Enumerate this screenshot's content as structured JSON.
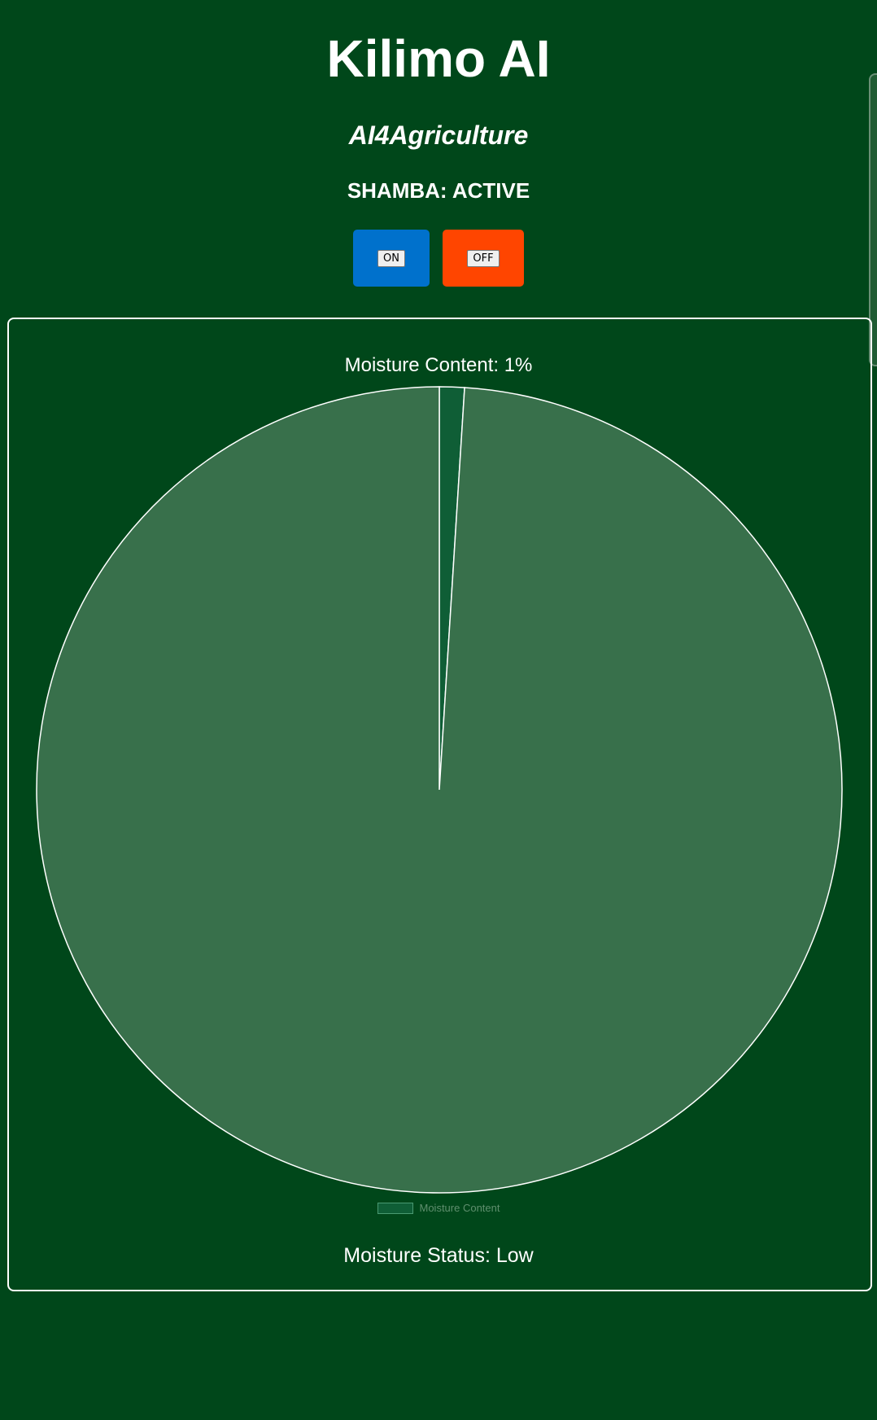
{
  "header": {
    "title": "Kilimo AI",
    "subtitle": "AI4Agriculture",
    "status": "SHAMBA: ACTIVE"
  },
  "controls": {
    "on_label": "ON",
    "off_label": "OFF"
  },
  "colors": {
    "background": "#00471a",
    "on_button": "#0071cc",
    "off_button": "#ff4500",
    "moisture_slice": "#0f5e36",
    "remainder_slice": "#38704b"
  },
  "chart_data": {
    "type": "pie",
    "title": "Moisture Content: 1%",
    "legend": [
      "Moisture Content"
    ],
    "legend_position": "bottom",
    "slices": [
      {
        "label": "Moisture Content",
        "value": 1,
        "color": "#0f5e36"
      },
      {
        "label": "",
        "value": 99,
        "color": "#38704b"
      }
    ]
  },
  "status": {
    "moisture": "Moisture Status: Low"
  }
}
